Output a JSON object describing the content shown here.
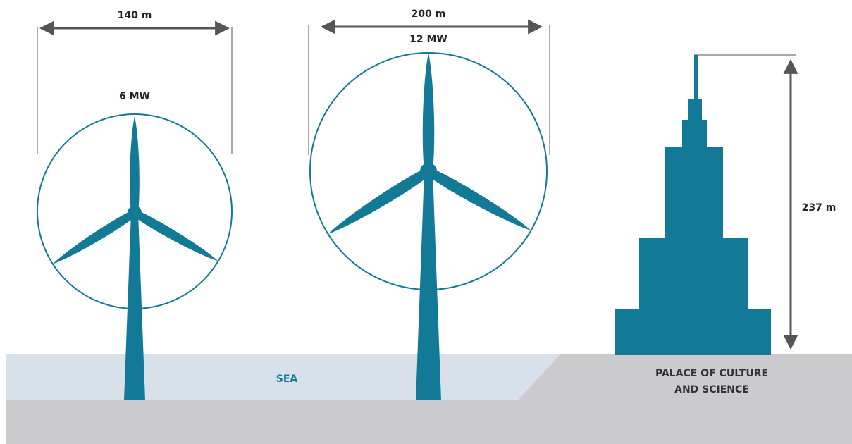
{
  "turbines": [
    {
      "diameter": "140 m",
      "power": "6 MW"
    },
    {
      "diameter": "200 m",
      "power": "12 MW"
    }
  ],
  "sea": "SEA",
  "building": {
    "height": "237 m",
    "name_lines": [
      "PALACE OF CULTURE",
      "AND SCIENCE"
    ]
  }
}
